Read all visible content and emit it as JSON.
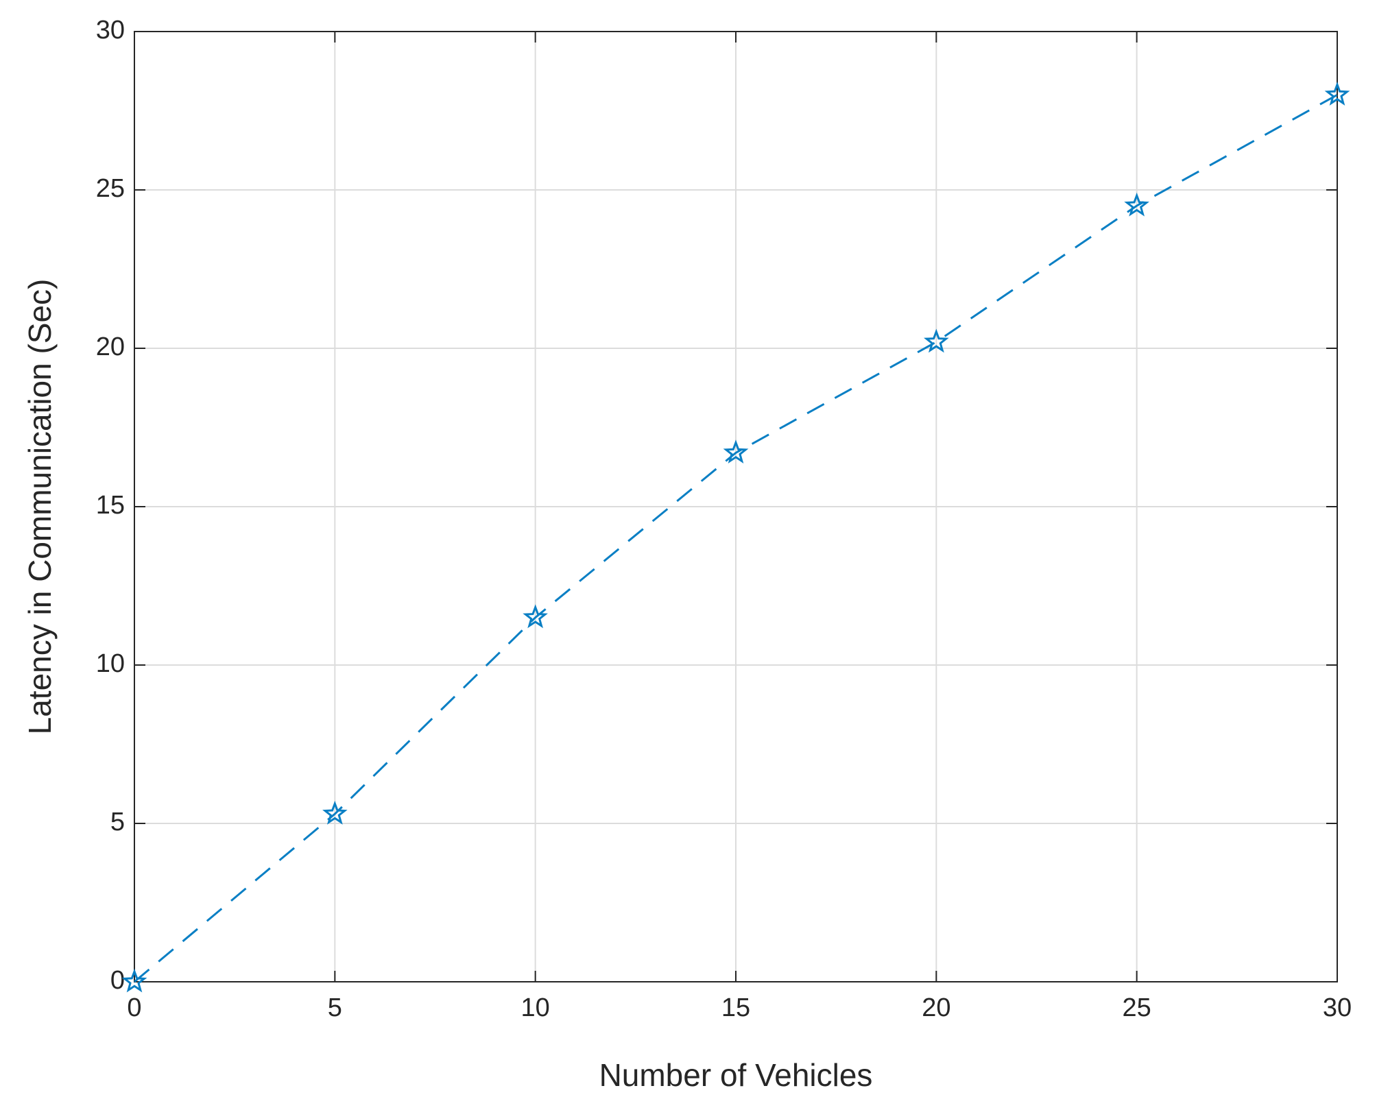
{
  "chart_data": {
    "type": "line",
    "x_label": "Number of Vehicles",
    "y_label": "Latency in Communication (Sec)",
    "x": [
      0,
      5,
      10,
      15,
      20,
      25,
      30
    ],
    "values": [
      0,
      5.3,
      11.5,
      16.7,
      20.2,
      24.5,
      28.0
    ],
    "color": "#0a7fc4",
    "line_style": "dashed",
    "marker": "star",
    "xlim": [
      0,
      30
    ],
    "xticks": [
      0,
      5,
      10,
      15,
      20,
      25,
      30
    ],
    "ylim": [
      0,
      30
    ],
    "yticks": [
      0,
      5,
      10,
      15,
      20,
      25,
      30
    ],
    "grid": true
  }
}
